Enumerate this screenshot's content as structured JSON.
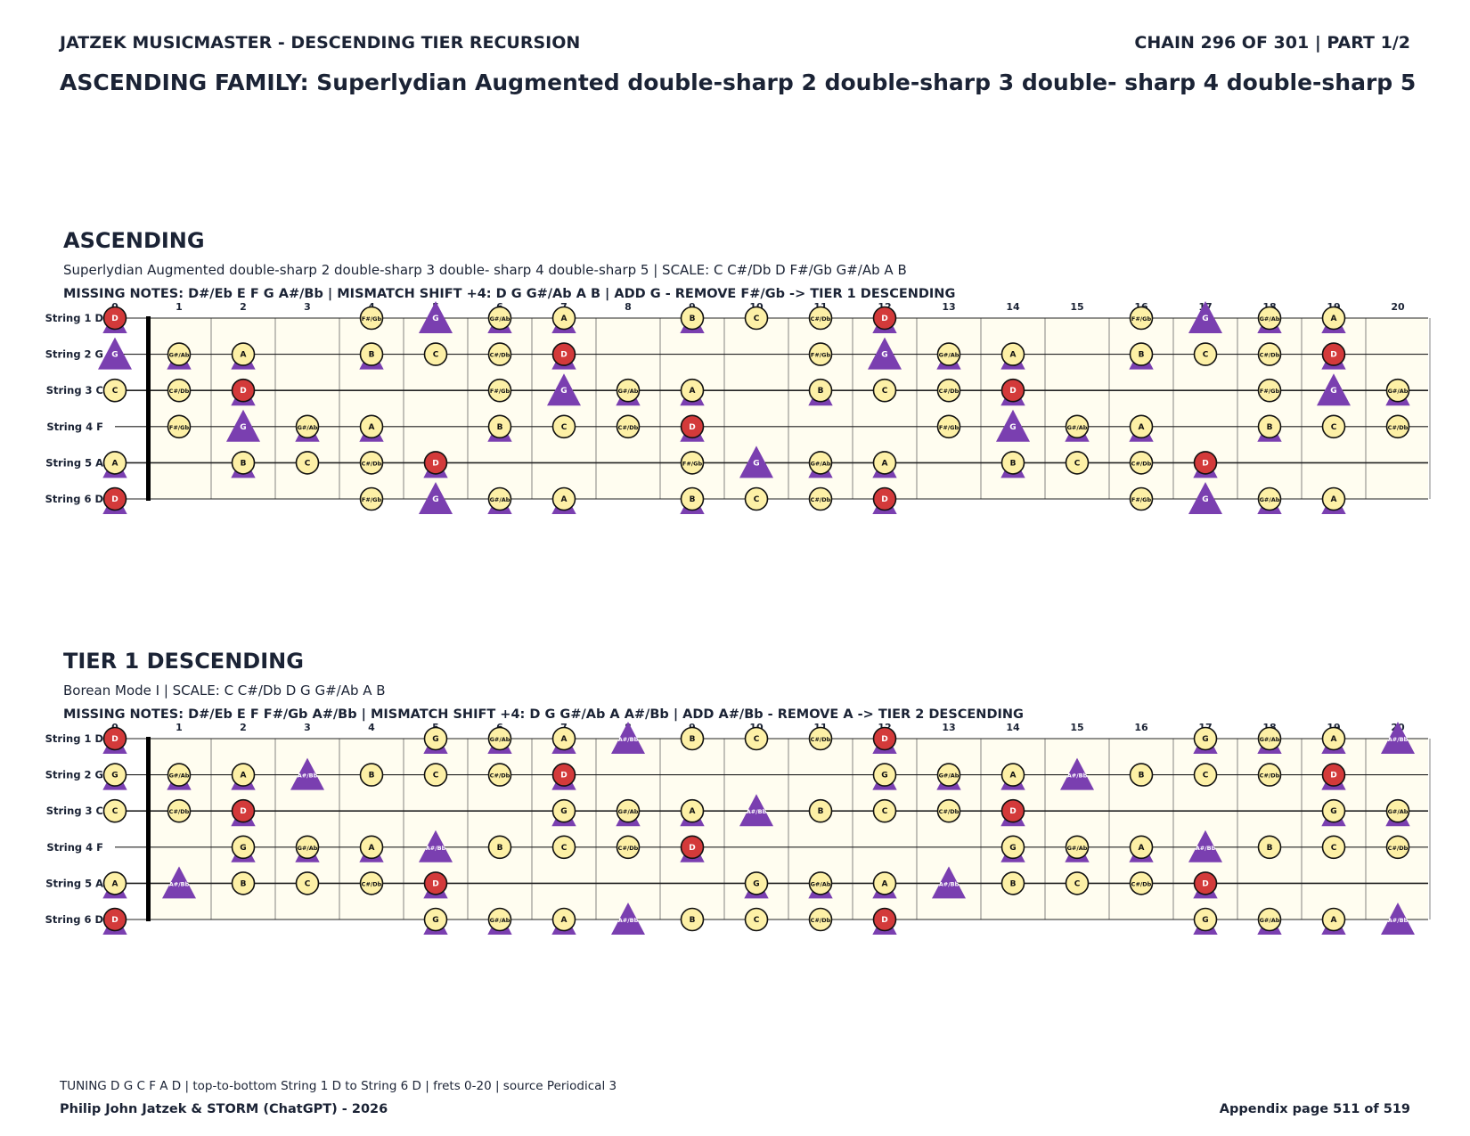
{
  "header": {
    "left": "JATZEK MUSICMASTER - DESCENDING TIER RECURSION",
    "right": "CHAIN 296 OF 301  |  PART 1/2",
    "family": "ASCENDING FAMILY: Superlydian Augmented double-sharp 2 double-sharp 3 double- sharp 4 double-sharp 5"
  },
  "footer": {
    "tuning": "TUNING D G C F A D | top-to-bottom String 1 D to String 6 D | frets 0-20 | source Periodical 3",
    "credit": "Philip John Jatzek & STORM (ChatGPT) - 2026",
    "page": "Appendix page 511 of 519"
  },
  "fretboard": {
    "frets": [
      "0",
      "1",
      "2",
      "3",
      "4",
      "5",
      "6",
      "7",
      "8",
      "9",
      "10",
      "11",
      "12",
      "13",
      "14",
      "15",
      "16",
      "17",
      "18",
      "19",
      "20"
    ],
    "strings": [
      {
        "label": "String 1 D",
        "open": "D"
      },
      {
        "label": "String 2 G",
        "open": "G"
      },
      {
        "label": "String 3 C",
        "open": "C"
      },
      {
        "label": "String 4 F",
        "open": "F"
      },
      {
        "label": "String 5 A",
        "open": "A"
      },
      {
        "label": "String 6 D",
        "open": "D"
      }
    ],
    "chromatic": [
      "C",
      "C#/Db",
      "D",
      "D#/Eb",
      "E",
      "F",
      "F#/Gb",
      "G",
      "G#/Ab",
      "A",
      "A#/Bb",
      "B"
    ],
    "colors": {
      "board": "#fffdf0",
      "fret_line": "#666666",
      "string_line": "#222222",
      "note_fill": "#fdf0a6",
      "root_fill": "#d33a3a",
      "triangle": "#7a3fb0",
      "text": "#1b2335"
    }
  },
  "sections": [
    {
      "title": "ASCENDING",
      "description": "Superlydian Augmented double-sharp 2 double-sharp 3 double- sharp 4 double-sharp 5  |  SCALE: C C#/Db D F#/Gb G#/Ab A B",
      "operations": "MISSING NOTES: D#/Eb E F G A#/Bb  |  MISMATCH SHIFT +4: D G G#/Ab A B  |  ADD G - REMOVE F#/Gb -> TIER 1 DESCENDING",
      "root": "D",
      "scale_notes": [
        "C",
        "C#/Db",
        "D",
        "F#/Gb",
        "G#/Ab",
        "A",
        "B"
      ],
      "mismatch_notes": [
        "D",
        "G",
        "G#/Ab",
        "A",
        "B"
      ],
      "added_note": "G"
    },
    {
      "title": "TIER 1 DESCENDING",
      "description": "Borean Mode I  |  SCALE: C C#/Db D G G#/Ab A B",
      "operations": "MISSING NOTES: D#/Eb E F F#/Gb A#/Bb  |  MISMATCH SHIFT +4: D G G#/Ab A A#/Bb  |  ADD A#/Bb - REMOVE A -> TIER 2 DESCENDING",
      "root": "D",
      "scale_notes": [
        "C",
        "C#/Db",
        "D",
        "G",
        "G#/Ab",
        "A",
        "B"
      ],
      "mismatch_notes": [
        "D",
        "G",
        "G#/Ab",
        "A",
        "A#/Bb"
      ],
      "added_note": "A#/Bb"
    }
  ]
}
